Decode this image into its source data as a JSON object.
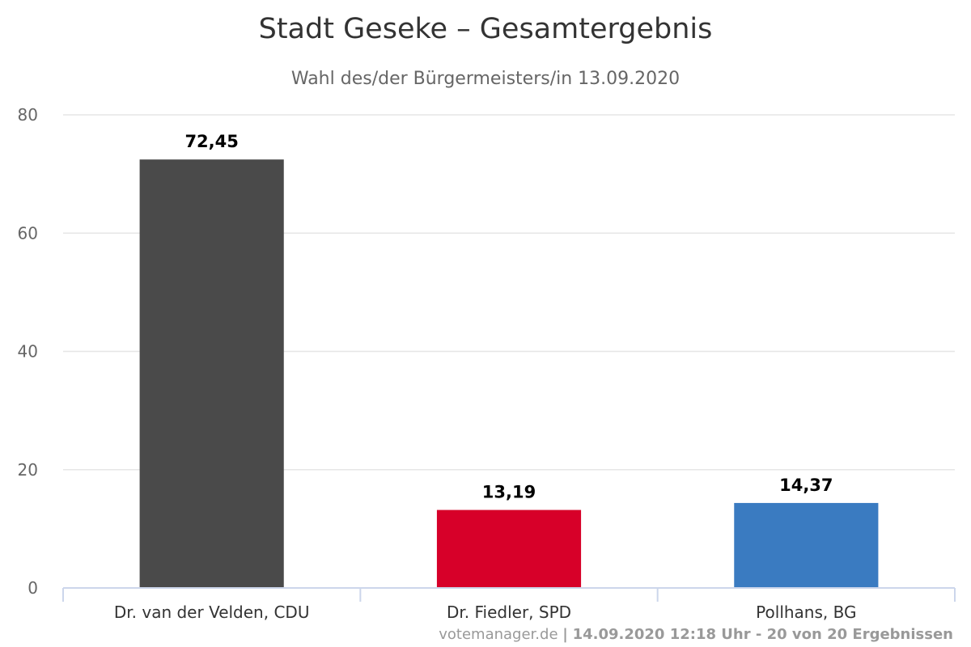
{
  "chart_data": {
    "type": "bar",
    "title": "Stadt Geseke – Gesamtergebnis",
    "subtitle": "Wahl des/der Bürgermeisters/in 13.09.2020",
    "categories": [
      "Dr. van der Velden, CDU",
      "Dr. Fiedler, SPD",
      "Pollhans, BG"
    ],
    "values": [
      72.45,
      13.19,
      14.37
    ],
    "value_labels": [
      "72,45",
      "13,19",
      "14,37"
    ],
    "colors": [
      "#4a4a4a",
      "#d70029",
      "#3a7bc1"
    ],
    "ylim": [
      0,
      80
    ],
    "yticks": [
      0,
      20,
      40,
      60,
      80
    ],
    "grid": true,
    "legend": false,
    "xlabel": "",
    "ylabel": ""
  },
  "credits": {
    "source": "votemanager.de",
    "separator": "|",
    "info": "14.09.2020 12:18 Uhr - 20 von 20 Ergebnissen"
  }
}
